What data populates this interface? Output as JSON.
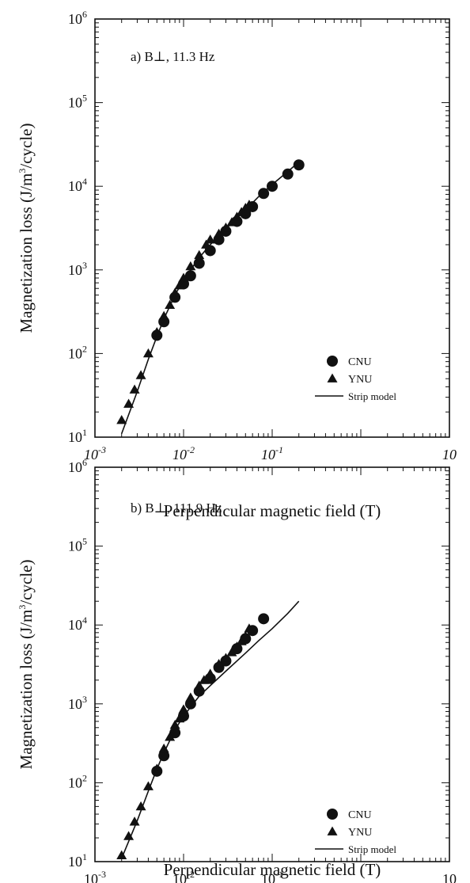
{
  "chart_data": [
    {
      "type": "scatter",
      "panel_label": "a) B⊥, 11.3 Hz",
      "xlabel": "Perpendicular magnetic field (T)",
      "ylabel": "Magnetization loss (J/m³/cycle)",
      "x_scale": "log",
      "y_scale": "log",
      "xlim": [
        0.001,
        10
      ],
      "ylim": [
        10,
        1000000
      ],
      "x_tick_labels": [
        {
          "base": "10",
          "exp": "-3",
          "value": 0.001
        },
        {
          "base": "10",
          "exp": "-2",
          "value": 0.01
        },
        {
          "base": "10",
          "exp": "-1",
          "value": 0.1
        },
        {
          "base": "10",
          "exp": "",
          "value": 10
        }
      ],
      "y_tick_labels": [
        {
          "base": "10",
          "exp": "1",
          "value": 10
        },
        {
          "base": "10",
          "exp": "2",
          "value": 100
        },
        {
          "base": "10",
          "exp": "3",
          "value": 1000
        },
        {
          "base": "10",
          "exp": "4",
          "value": 10000
        },
        {
          "base": "10",
          "exp": "5",
          "value": 100000
        },
        {
          "base": "10",
          "exp": "6",
          "value": 1000000
        }
      ],
      "legend_position": "bottom-right",
      "series": [
        {
          "name": "CNU",
          "marker": "circle",
          "points": [
            [
              0.005,
              165
            ],
            [
              0.006,
              240
            ],
            [
              0.008,
              470
            ],
            [
              0.01,
              680
            ],
            [
              0.012,
              850
            ],
            [
              0.015,
              1200
            ],
            [
              0.02,
              1700
            ],
            [
              0.025,
              2300
            ],
            [
              0.03,
              2900
            ],
            [
              0.04,
              3800
            ],
            [
              0.05,
              4700
            ],
            [
              0.06,
              5700
            ],
            [
              0.08,
              8200
            ],
            [
              0.1,
              10000
            ],
            [
              0.15,
              14000
            ],
            [
              0.2,
              18000
            ]
          ]
        },
        {
          "name": "YNU",
          "marker": "triangle",
          "points": [
            [
              0.002,
              16
            ],
            [
              0.0024,
              25
            ],
            [
              0.0028,
              37
            ],
            [
              0.0033,
              55
            ],
            [
              0.004,
              100
            ],
            [
              0.005,
              180
            ],
            [
              0.006,
              280
            ],
            [
              0.007,
              380
            ],
            [
              0.008,
              530
            ],
            [
              0.009,
              650
            ],
            [
              0.01,
              800
            ],
            [
              0.012,
              1100
            ],
            [
              0.015,
              1500
            ],
            [
              0.018,
              2000
            ],
            [
              0.02,
              2300
            ],
            [
              0.025,
              2700
            ],
            [
              0.03,
              3200
            ],
            [
              0.035,
              3700
            ],
            [
              0.04,
              4300
            ],
            [
              0.045,
              4900
            ],
            [
              0.05,
              5500
            ],
            [
              0.055,
              6000
            ]
          ]
        },
        {
          "name": "Strip model",
          "marker": "line",
          "points": [
            [
              0.002,
              11
            ],
            [
              0.003,
              35
            ],
            [
              0.004,
              85
            ],
            [
              0.005,
              160
            ],
            [
              0.006,
              260
            ],
            [
              0.008,
              500
            ],
            [
              0.01,
              760
            ],
            [
              0.015,
              1400
            ],
            [
              0.02,
              2000
            ],
            [
              0.03,
              3100
            ],
            [
              0.05,
              5200
            ],
            [
              0.07,
              7500
            ],
            [
              0.1,
              10500
            ],
            [
              0.15,
              15000
            ],
            [
              0.2,
              19500
            ]
          ]
        }
      ]
    },
    {
      "type": "scatter",
      "panel_label": "b) B⊥, 111.9 Hz",
      "xlabel": "Perpendicular magnetic field (T)",
      "ylabel": "Magnetization loss (J/m³/cycle)",
      "x_scale": "log",
      "y_scale": "log",
      "xlim": [
        0.001,
        10
      ],
      "ylim": [
        10,
        1000000
      ],
      "x_tick_labels": [
        {
          "base": "10",
          "exp": "-3",
          "value": 0.001
        },
        {
          "base": "10",
          "exp": "-2",
          "value": 0.01
        },
        {
          "base": "10",
          "exp": "-1",
          "value": 0.1
        },
        {
          "base": "10",
          "exp": "",
          "value": 10
        }
      ],
      "y_tick_labels": [
        {
          "base": "10",
          "exp": "1",
          "value": 10
        },
        {
          "base": "10",
          "exp": "2",
          "value": 100
        },
        {
          "base": "10",
          "exp": "3",
          "value": 1000
        },
        {
          "base": "10",
          "exp": "4",
          "value": 10000
        },
        {
          "base": "10",
          "exp": "5",
          "value": 100000
        },
        {
          "base": "10",
          "exp": "6",
          "value": 1000000
        }
      ],
      "legend_position": "bottom-right",
      "series": [
        {
          "name": "CNU",
          "marker": "circle",
          "points": [
            [
              0.005,
              140
            ],
            [
              0.006,
              220
            ],
            [
              0.008,
              430
            ],
            [
              0.01,
              700
            ],
            [
              0.012,
              1000
            ],
            [
              0.015,
              1450
            ],
            [
              0.02,
              2100
            ],
            [
              0.025,
              2900
            ],
            [
              0.03,
              3500
            ],
            [
              0.04,
              5000
            ],
            [
              0.05,
              6700
            ],
            [
              0.06,
              8500
            ],
            [
              0.08,
              12000
            ]
          ]
        },
        {
          "name": "YNU",
          "marker": "triangle",
          "points": [
            [
              0.002,
              12
            ],
            [
              0.0024,
              21
            ],
            [
              0.0028,
              32
            ],
            [
              0.0033,
              50
            ],
            [
              0.004,
              90
            ],
            [
              0.005,
              150
            ],
            [
              0.006,
              270
            ],
            [
              0.007,
              380
            ],
            [
              0.008,
              540
            ],
            [
              0.009,
              650
            ],
            [
              0.01,
              850
            ],
            [
              0.012,
              1200
            ],
            [
              0.015,
              1700
            ],
            [
              0.017,
              2000
            ],
            [
              0.02,
              2400
            ],
            [
              0.025,
              3200
            ],
            [
              0.03,
              3800
            ],
            [
              0.035,
              4500
            ],
            [
              0.04,
              5300
            ],
            [
              0.045,
              6200
            ],
            [
              0.05,
              7200
            ],
            [
              0.055,
              9000
            ]
          ]
        },
        {
          "name": "Strip model",
          "marker": "line",
          "points": [
            [
              0.002,
              11
            ],
            [
              0.003,
              33
            ],
            [
              0.004,
              78
            ],
            [
              0.005,
              150
            ],
            [
              0.006,
              240
            ],
            [
              0.008,
              470
            ],
            [
              0.01,
              700
            ],
            [
              0.015,
              1250
            ],
            [
              0.02,
              1700
            ],
            [
              0.03,
              2600
            ],
            [
              0.05,
              4400
            ],
            [
              0.07,
              6300
            ],
            [
              0.1,
              9000
            ],
            [
              0.15,
              14000
            ],
            [
              0.2,
              20000
            ]
          ]
        }
      ]
    }
  ]
}
